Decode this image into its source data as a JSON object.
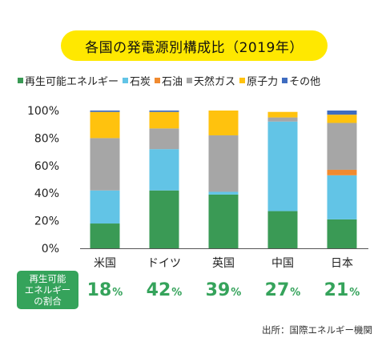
{
  "title": "各国の発電源別構成比（2019年）",
  "source": "出所：国際エネルギー機関",
  "share_label": [
    "再生可能",
    "エネルギー",
    "の割合"
  ],
  "share_values": [
    {
      "num": "18",
      "unit": "%"
    },
    {
      "num": "42",
      "unit": "%"
    },
    {
      "num": "39",
      "unit": "%"
    },
    {
      "num": "27",
      "unit": "%"
    },
    {
      "num": "21",
      "unit": "%"
    }
  ],
  "chart_data": {
    "type": "bar",
    "stacked": true,
    "categories": [
      "米国",
      "ドイツ",
      "英国",
      "中国",
      "日本"
    ],
    "ylim": [
      0,
      100
    ],
    "yticks": [
      "0%",
      "20%",
      "40%",
      "60%",
      "80%",
      "100%"
    ],
    "grid": false,
    "legend_position": "top",
    "series": [
      {
        "name": "再生可能エネルギー",
        "color": "#3a9a55",
        "values": [
          18,
          42,
          39,
          27,
          21
        ]
      },
      {
        "name": "石炭",
        "color": "#62c4e6",
        "values": [
          24,
          30,
          2,
          65,
          32
        ]
      },
      {
        "name": "石油",
        "color": "#f08a30",
        "values": [
          0,
          0,
          0,
          0,
          4
        ]
      },
      {
        "name": "天然ガス",
        "color": "#a6a6a6",
        "values": [
          38,
          15,
          41,
          3,
          34
        ]
      },
      {
        "name": "原子力",
        "color": "#ffc20e",
        "values": [
          19,
          12,
          18,
          4,
          6
        ]
      },
      {
        "name": "その他",
        "color": "#3f6cc0",
        "values": [
          1,
          1,
          0,
          0,
          3
        ]
      }
    ]
  }
}
